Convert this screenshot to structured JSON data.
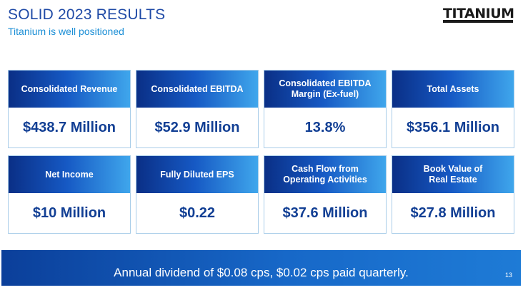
{
  "header": {
    "title": "SOLID 2023 RESULTS",
    "subtitle": "Titanium is well positioned"
  },
  "logo": {
    "text": "TITANIUM"
  },
  "metrics": [
    {
      "label": "Consolidated Revenue",
      "value": "$438.7 Million"
    },
    {
      "label": "Consolidated EBITDA",
      "value": "$52.9 Million"
    },
    {
      "label": "Consolidated EBITDA\nMargin (Ex-fuel)",
      "value": "13.8%"
    },
    {
      "label": "Total Assets",
      "value": "$356.1 Million"
    },
    {
      "label": "Net Income",
      "value": "$10 Million"
    },
    {
      "label": "Fully Diluted EPS",
      "value": "$0.22"
    },
    {
      "label": "Cash Flow from\nOperating Activities",
      "value": "$37.6 Million"
    },
    {
      "label": "Book Value of\nReal Estate",
      "value": "$27.8 Million"
    }
  ],
  "footer": {
    "text": "Annual dividend of $0.08 cps, $0.02 cps paid quarterly.",
    "page_number": "13"
  },
  "colors": {
    "title": "#1f4aa6",
    "subtitle": "#1c8fd6",
    "card_header_dark": "#0a2f86",
    "card_header_light": "#3fa6ec",
    "value_text": "#123f94",
    "footer_bar": "#1768c8"
  }
}
